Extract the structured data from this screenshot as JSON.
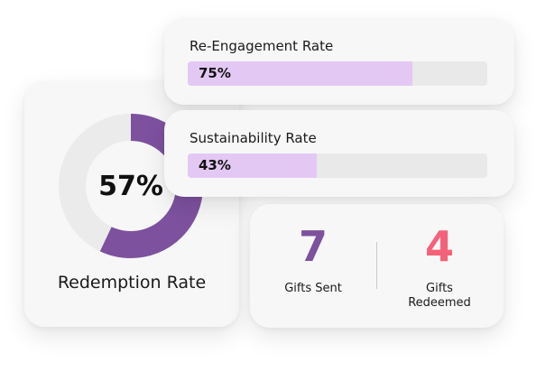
{
  "redemption": {
    "value_text": "57%",
    "value": 0.57,
    "label": "Redemption Rate",
    "colors": {
      "fill": "#7d519e",
      "track": "#ebebeb"
    }
  },
  "reengagement": {
    "title": "Re-Engagement Rate",
    "value_text": "75%",
    "value": 0.75,
    "colors": {
      "fill": "#e4c8f4",
      "track": "#e9e9e9"
    }
  },
  "sustainability": {
    "title": "Sustainability Rate",
    "value_text": "43%",
    "value": 0.43,
    "colors": {
      "fill": "#e4c8f4",
      "track": "#e9e9e9"
    }
  },
  "gifts": {
    "sent": {
      "value": "7",
      "label": "Gifts Sent",
      "color": "#7d519e"
    },
    "redeemed": {
      "value": "4",
      "label": "Gifts Redeemed",
      "color": "#f4627a"
    }
  }
}
